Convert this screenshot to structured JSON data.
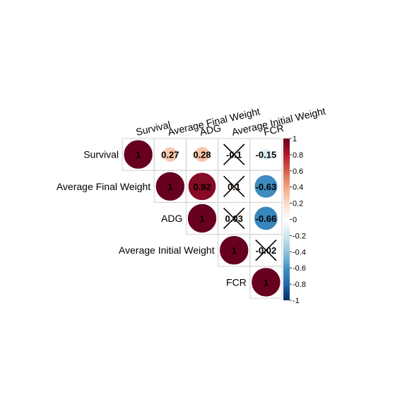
{
  "chart_data": {
    "type": "heatmap",
    "style": "upper-triangle correlation matrix with circles",
    "variables": [
      "Survival",
      "Average Final Weight",
      "ADG",
      "Average Initial Weight",
      "FCR"
    ],
    "matrix": [
      [
        1,
        0.27,
        0.28,
        -0.1,
        -0.15
      ],
      [
        null,
        1,
        0.92,
        0.1,
        -0.63
      ],
      [
        null,
        null,
        1,
        0.03,
        -0.66
      ],
      [
        null,
        null,
        null,
        1,
        -0.02
      ],
      [
        null,
        null,
        null,
        null,
        1
      ]
    ],
    "value_labels": [
      [
        "1",
        "0.27",
        "0.28",
        "-0.1",
        "-0.15"
      ],
      [
        null,
        "1",
        "0.92",
        "0.1",
        "-0.63"
      ],
      [
        null,
        null,
        "1",
        "0.03",
        "-0.66"
      ],
      [
        null,
        null,
        null,
        "1",
        "-0.02"
      ],
      [
        null,
        null,
        null,
        null,
        "1"
      ]
    ],
    "crossed_out": [
      [
        false,
        false,
        false,
        true,
        false
      ],
      [
        false,
        false,
        false,
        true,
        false
      ],
      [
        false,
        false,
        false,
        true,
        false
      ],
      [
        false,
        false,
        false,
        false,
        true
      ],
      [
        false,
        false,
        false,
        false,
        false
      ]
    ],
    "colorbar": {
      "range": [
        -1,
        1
      ],
      "ticks": [
        "1",
        "0.8",
        "0.6",
        "0.4",
        "0.2",
        "0",
        "-0.2",
        "-0.4",
        "-0.6",
        "-0.8",
        "-1"
      ],
      "colors": [
        "#67001F",
        "#B2182B",
        "#D6604D",
        "#F4A582",
        "#FDDBC7",
        "#FFFFFF",
        "#D1E5F0",
        "#92C5DE",
        "#4393C3",
        "#2166AC",
        "#053061"
      ]
    },
    "grid": true
  }
}
